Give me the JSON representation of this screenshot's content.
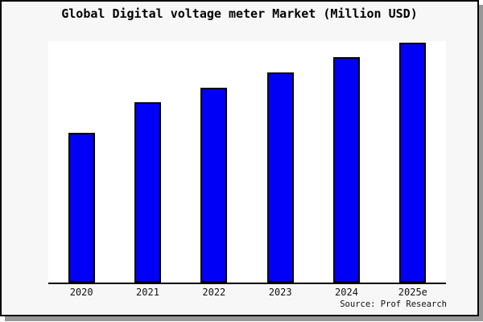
{
  "window": {
    "background_color": "#f7f7f7",
    "plot_background_color": "#ffffff",
    "border_color": "#000000",
    "shadow_color": "#989898"
  },
  "chart_data": {
    "type": "bar",
    "title": "Global Digital voltage meter Market (Million USD)",
    "categories": [
      "2020",
      "2021",
      "2022",
      "2023",
      "2024",
      "2025e"
    ],
    "values": [
      100,
      120,
      130,
      140,
      150,
      160
    ],
    "xlabel": "",
    "ylabel": "",
    "ylim": [
      0,
      161
    ],
    "grid": false,
    "legend": false,
    "y_axis_labels_visible": false,
    "bar_color": "#0000f6",
    "bar_border_color": "#000000",
    "source": "Source: Prof Research"
  }
}
